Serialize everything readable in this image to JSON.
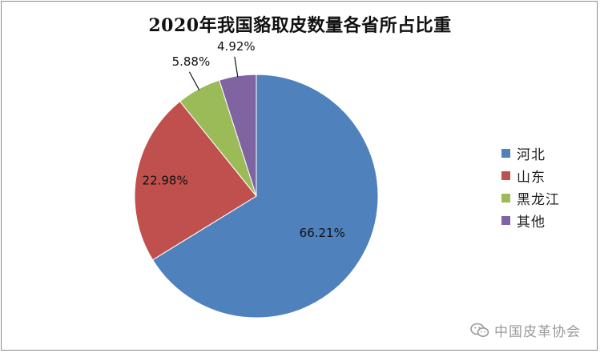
{
  "chart_data": {
    "type": "pie",
    "title": "2020年我国貉取皮数量各省所占比重",
    "categories": [
      "河北",
      "山东",
      "黑龙江",
      "其他"
    ],
    "values": [
      66.21,
      22.98,
      5.88,
      4.92
    ],
    "labels": [
      "66.21%",
      "22.98%",
      "5.88%",
      "4.92%"
    ],
    "colors": [
      "#4f81bd",
      "#c0504d",
      "#9bbb59",
      "#8064a2"
    ],
    "start_angle": "12 o'clock",
    "direction": "clockwise",
    "legend_position": "right"
  },
  "watermark": {
    "text": "中国皮革协会",
    "icon": "wechat-icon"
  }
}
